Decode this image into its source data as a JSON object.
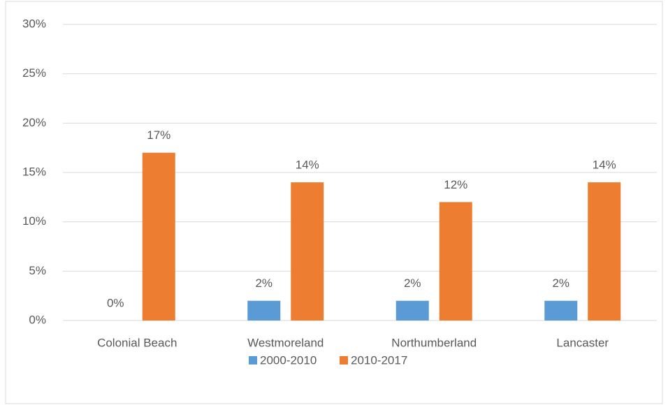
{
  "chart_data": {
    "type": "bar",
    "categories": [
      "Colonial Beach",
      "Westmoreland",
      "Northumberland",
      "Lancaster"
    ],
    "series": [
      {
        "name": "2000-2010",
        "color": "#5b9bd5",
        "values": [
          0,
          2,
          2,
          2
        ],
        "value_labels": [
          "0%",
          "2%",
          "2%",
          "2%"
        ]
      },
      {
        "name": "2010-2017",
        "color": "#ed7d31",
        "values": [
          17,
          14,
          12,
          14
        ],
        "value_labels": [
          "17%",
          "14%",
          "12%",
          "14%"
        ]
      }
    ],
    "ylim": [
      0,
      30
    ],
    "yticks": [
      {
        "value": 0,
        "label": "0%"
      },
      {
        "value": 5,
        "label": "5%"
      },
      {
        "value": 10,
        "label": "10%"
      },
      {
        "value": 15,
        "label": "15%"
      },
      {
        "value": 20,
        "label": "20%"
      },
      {
        "value": 25,
        "label": "25%"
      },
      {
        "value": 30,
        "label": "30%"
      }
    ],
    "grid": true,
    "legend": "bottom"
  }
}
